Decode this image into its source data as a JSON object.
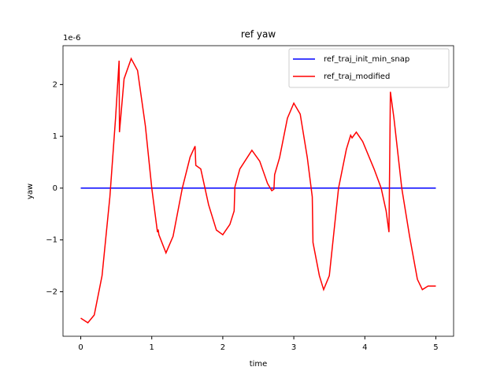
{
  "chart_data": {
    "type": "line",
    "title": "ref yaw",
    "xlabel": "time",
    "ylabel": "yaw",
    "y_offset_label": "1e-6",
    "xlim": [
      -0.25,
      5.25
    ],
    "ylim": [
      -2.86,
      2.75
    ],
    "xticks": [
      0,
      1,
      2,
      3,
      4,
      5
    ],
    "yticks": [
      {
        "value": -2,
        "label": "−2"
      },
      {
        "value": -1,
        "label": "−1"
      },
      0,
      1,
      2
    ],
    "legend": "upper right",
    "series": [
      {
        "name": "ref_traj_init_min_snap",
        "color": "#0000ff",
        "x": [
          0,
          5
        ],
        "values": [
          0,
          0
        ]
      },
      {
        "name": "ref_traj_modified",
        "color": "#ff0000",
        "x": [
          0,
          0.1,
          0.19,
          0.3,
          0.41,
          0.49,
          0.54,
          0.545,
          0.61,
          0.71,
          0.8,
          0.91,
          1.0,
          1.08,
          1.09,
          1.1,
          1.2,
          1.3,
          1.43,
          1.54,
          1.61,
          1.62,
          1.69,
          1.8,
          1.91,
          2.0,
          2.1,
          2.16,
          2.17,
          2.24,
          2.41,
          2.52,
          2.63,
          2.69,
          2.72,
          2.73,
          2.8,
          2.91,
          3.0,
          3.09,
          3.19,
          3.26,
          3.27,
          3.36,
          3.42,
          3.5,
          3.63,
          3.74,
          3.8,
          3.82,
          3.88,
          3.97,
          4.13,
          4.23,
          4.3,
          4.34,
          4.36,
          4.41,
          4.52,
          4.63,
          4.74,
          4.81,
          4.89,
          5.0
        ],
        "values": [
          -2.51,
          -2.6,
          -2.45,
          -1.69,
          -0.17,
          1.35,
          2.46,
          1.08,
          2.11,
          2.5,
          2.27,
          1.2,
          0,
          -0.85,
          -0.8,
          -0.9,
          -1.25,
          -0.93,
          0,
          0.6,
          0.81,
          0.44,
          0.37,
          -0.32,
          -0.81,
          -0.9,
          -0.7,
          -0.44,
          0.02,
          0.37,
          0.73,
          0.52,
          0.09,
          -0.05,
          -0.02,
          0.26,
          0.59,
          1.35,
          1.64,
          1.43,
          0.59,
          -0.17,
          -1.05,
          -1.69,
          -1.96,
          -1.69,
          0,
          0.75,
          1.02,
          0.97,
          1.08,
          0.9,
          0.37,
          0,
          -0.44,
          -0.85,
          1.86,
          1.35,
          0,
          -0.93,
          -1.76,
          -1.96,
          -1.89,
          -1.89
        ]
      }
    ]
  }
}
